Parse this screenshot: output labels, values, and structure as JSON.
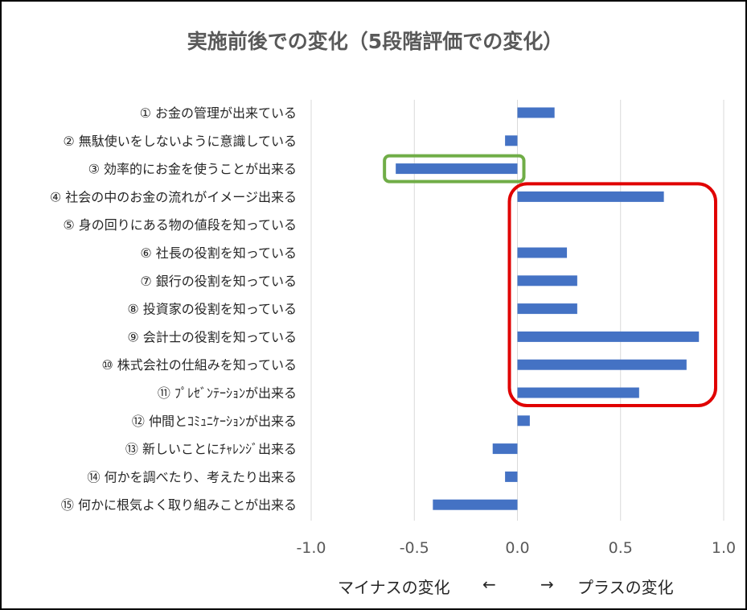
{
  "chart_data": {
    "type": "bar",
    "orientation": "horizontal",
    "title": "実施前後での変化（5段階評価での変化）",
    "categories": [
      "① お金の管理が出来ている",
      "② 無駄使いをしないように意識している",
      "③ 効率的にお金を使うことが出来る",
      "④ 社会の中のお金の流れがイメージ出来る",
      "⑤ 身の回りにある物の値段を知っている",
      "⑥ 社長の役割を知っている",
      "⑦ 銀行の役割を知っている",
      "⑧ 投資家の役割を知っている",
      "⑨ 会計士の役割を知っている",
      "⑩ 株式会社の仕組みを知っている",
      "⑪ ﾌﾟﾚｾﾞﾝﾃｰｼｮﾝが出来る",
      "⑫ 仲間とｺﾐｭﾆｹｰｼｮﾝが出来る",
      "⑬ 新しいことにﾁｬﾚﾝｼﾞ出来る",
      "⑭ 何かを調べたり、考えたり出来る",
      "⑮ 何かに根気よく取り組みことが出来る"
    ],
    "values": [
      0.18,
      -0.06,
      -0.59,
      0.71,
      0.0,
      0.24,
      0.29,
      0.29,
      0.88,
      0.82,
      0.59,
      0.06,
      -0.12,
      -0.06,
      -0.41
    ],
    "xlim": [
      -1.0,
      1.0
    ],
    "xticks": [
      "-1.0",
      "-0.5",
      "0.0",
      "0.5",
      "1.0"
    ],
    "grid": "vertical",
    "bar_color": "#4472C4",
    "highlights": [
      {
        "color": "#70AD47",
        "categories": [
          "③ 効率的にお金を使うことが出来る"
        ]
      },
      {
        "color": "#E00000",
        "categories": [
          "④ 社会の中のお金の流れがイメージ出来る",
          "⑤ 身の回りにある物の値段を知っている",
          "⑥ 社長の役割を知っている",
          "⑦ 銀行の役割を知っている",
          "⑧ 投資家の役割を知っている",
          "⑨ 会計士の役割を知っている",
          "⑩ 株式会社の仕組みを知っている",
          "⑪ ﾌﾟﾚｾﾞﾝﾃｰｼｮﾝが出来る"
        ]
      }
    ]
  },
  "axis_note": {
    "minus": "マイナスの変化",
    "left_arrow": "←",
    "right_arrow": "→",
    "plus": "プラスの変化"
  }
}
